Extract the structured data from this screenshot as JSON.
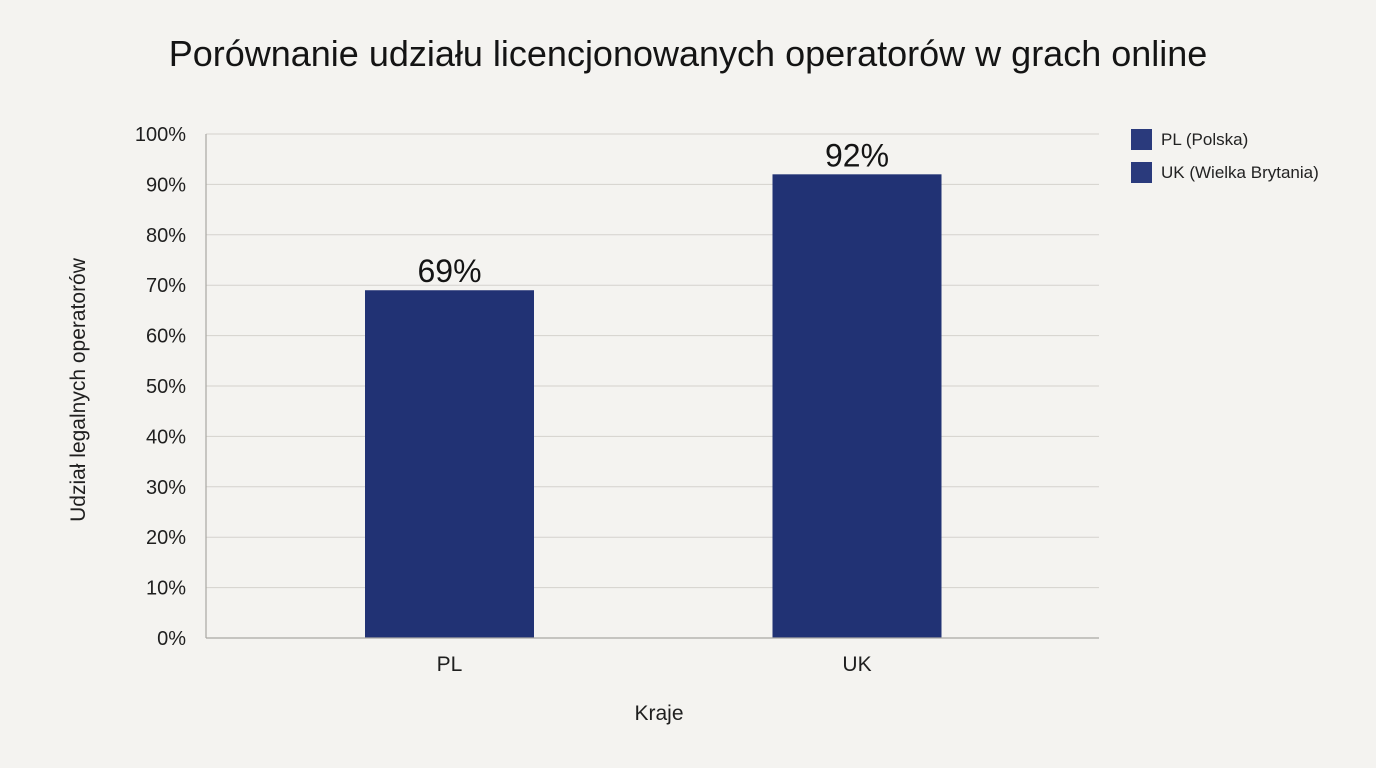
{
  "chart_data": {
    "type": "bar",
    "title": "Porównanie udziału licencjonowanych operatorów w grach online",
    "xlabel": "Kraje",
    "ylabel": "Udział legalnych operatorów",
    "categories": [
      "PL",
      "UK"
    ],
    "values": [
      69,
      92
    ],
    "data_labels": [
      "69%",
      "92%"
    ],
    "ylim": [
      0,
      100
    ],
    "y_ticks": [
      0,
      10,
      20,
      30,
      40,
      50,
      60,
      70,
      80,
      90,
      100
    ],
    "y_tick_labels": [
      "0%",
      "10%",
      "20%",
      "30%",
      "40%",
      "50%",
      "60%",
      "70%",
      "80%",
      "90%",
      "100%"
    ],
    "grid": true,
    "legend_position": "top-right",
    "legend": [
      {
        "label": "PL (Polska)",
        "color": "#2a3a7c"
      },
      {
        "label": "UK (Wielka Brytania)",
        "color": "#2a3a7c"
      }
    ],
    "bar_color": "#213274"
  }
}
